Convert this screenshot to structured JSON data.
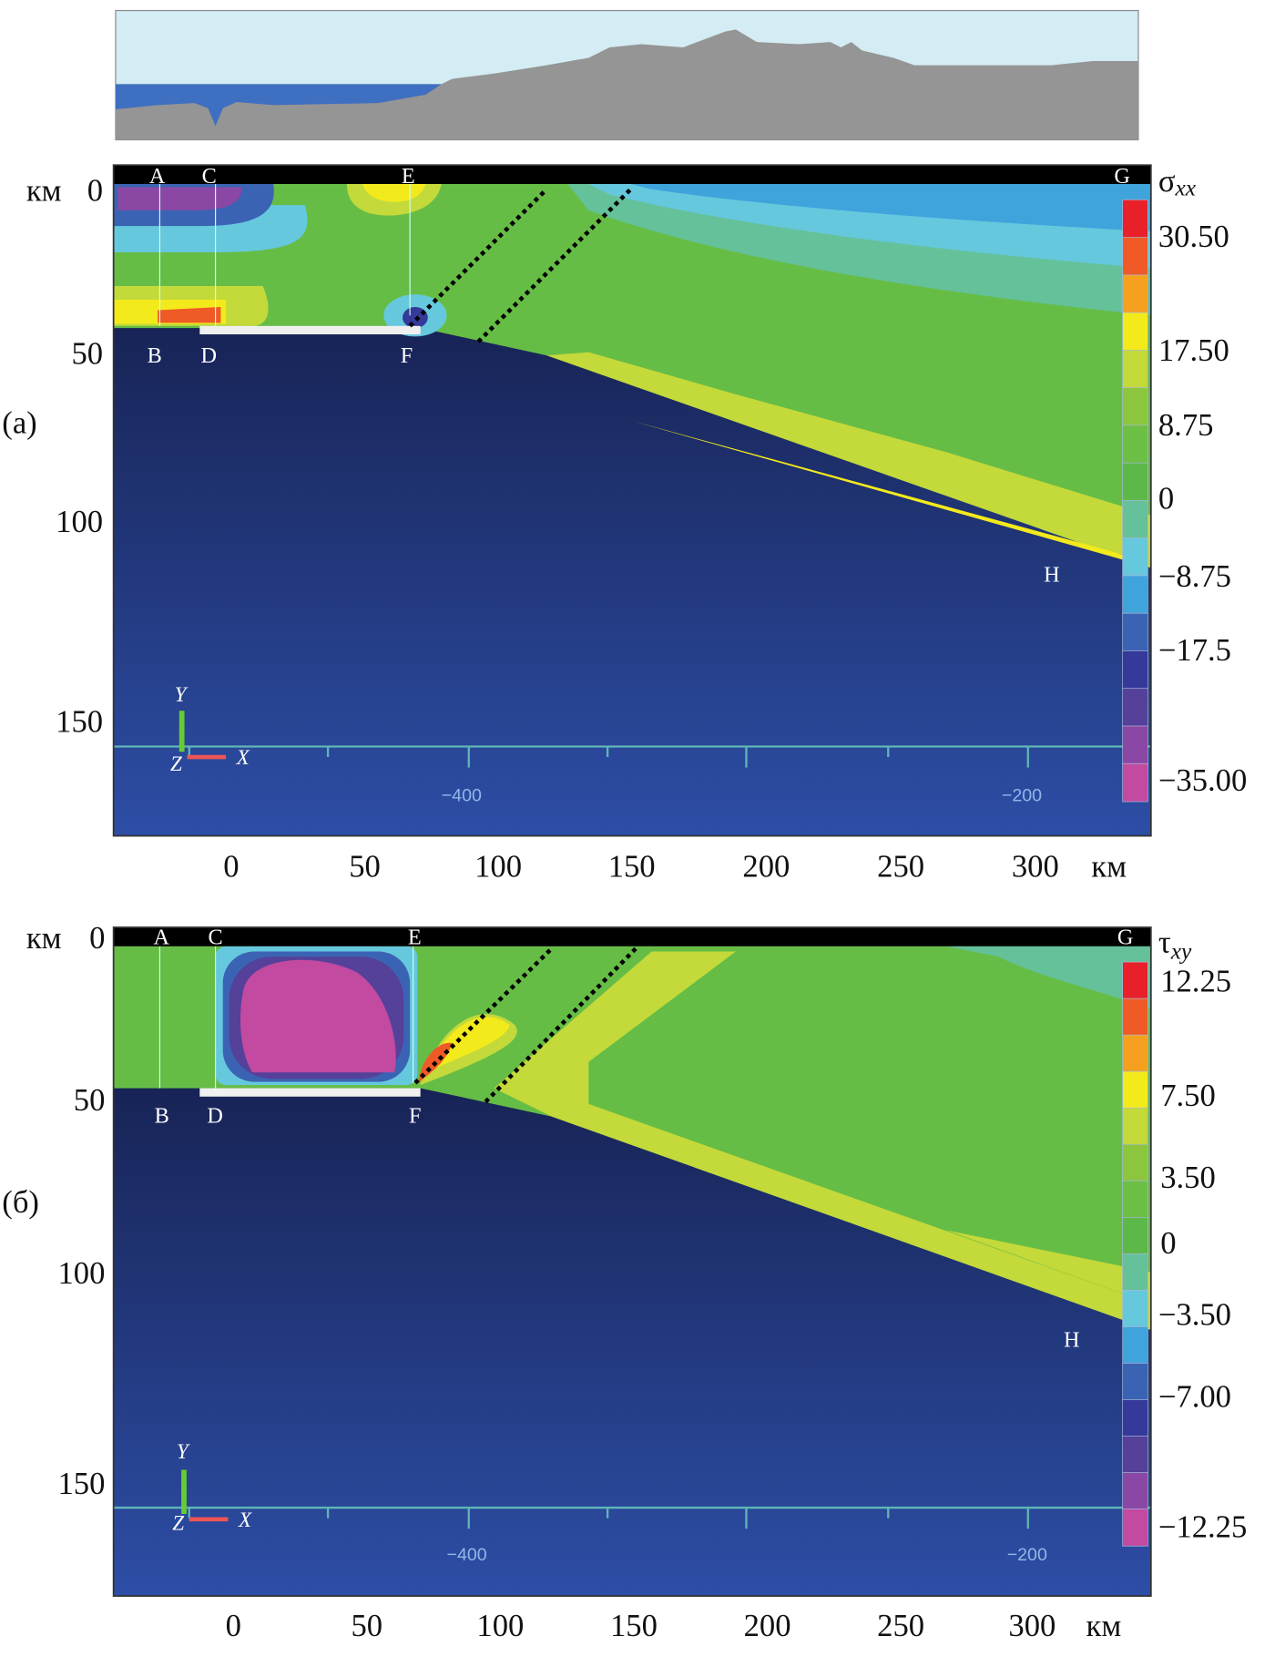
{
  "panels": [
    {
      "label": "(a)",
      "quantity": "σ",
      "quantity_sub": "xx",
      "y_unit": "км",
      "x_unit": "км",
      "y_ticks": [
        "0",
        "50",
        "100",
        "150"
      ],
      "x_ticks": [
        "0",
        "50",
        "100",
        "150",
        "200",
        "250",
        "300"
      ],
      "points_top": [
        "A",
        "C",
        "E",
        "G"
      ],
      "points_bottom": [
        "B",
        "D",
        "F"
      ],
      "point_h": "H",
      "inner_ticks": [
        "−400",
        "−200"
      ],
      "colorbar_labels": [
        "30.50",
        "17.50",
        "8.75",
        "0",
        "−8.75",
        "−17.5",
        "−35.00"
      ]
    },
    {
      "label": "(б)",
      "quantity": "τ",
      "quantity_sub": "xy",
      "y_unit": "км",
      "x_unit": "км",
      "y_ticks": [
        "0",
        "50",
        "100",
        "150"
      ],
      "x_ticks": [
        "0",
        "50",
        "100",
        "150",
        "200",
        "250",
        "300"
      ],
      "points_top": [
        "A",
        "C",
        "E",
        "G"
      ],
      "points_bottom": [
        "B",
        "D",
        "F"
      ],
      "point_h": "H",
      "inner_ticks": [
        "−400",
        "−200"
      ],
      "colorbar_labels": [
        "12.25",
        "7.50",
        "3.50",
        "0",
        "−3.50",
        "−7.00",
        "−12.25"
      ]
    }
  ],
  "triad": {
    "y": "Y",
    "z": "Z",
    "x": "X"
  },
  "colorbar_colors": [
    "#e8202a",
    "#ef5a26",
    "#f5a01e",
    "#f3ea1c",
    "#c4d93a",
    "#8cc63f",
    "#6cbf45",
    "#5db84a",
    "#64c19a",
    "#66c8dd",
    "#3fa4dc",
    "#3b63b3",
    "#34399a",
    "#55409a",
    "#8a48a4",
    "#c24aa0"
  ],
  "colors": {
    "mantle_top": "#141a45",
    "mantle_bottom": "#2c4aa3",
    "crust": "#66bd45",
    "sea": "#3f6fc0",
    "land": "#9a9a9a",
    "sky": "#d4ecf3"
  }
}
